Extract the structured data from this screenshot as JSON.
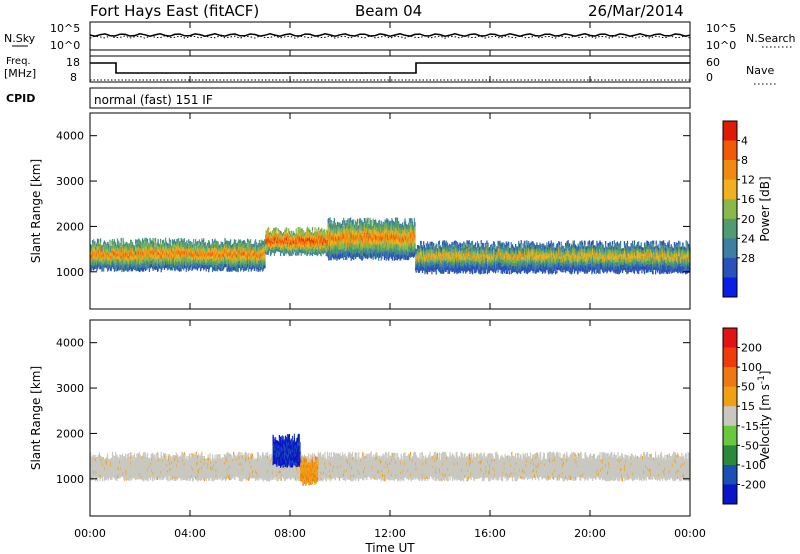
{
  "header": {
    "station": "Fort Hays East (fitACF)",
    "beam": "Beam 04",
    "date": "26/Mar/2014"
  },
  "noise_panel": {
    "left_label": "N.Sky",
    "right_label": "N.Search",
    "left_ticks": [
      "10^5",
      "10^0"
    ],
    "right_ticks": [
      "10^5",
      "10^0"
    ]
  },
  "freq_panel": {
    "left_label_1": "Freq.",
    "left_label_2": "[MHz]",
    "right_label": "Nave",
    "left_ticks": [
      "18",
      "8"
    ],
    "right_ticks": [
      "60",
      "0"
    ]
  },
  "cpid_panel": {
    "label": "CPID",
    "mode": "normal (fast) 151 IF"
  },
  "time_axis": {
    "label": "Time UT",
    "ticks": [
      "00:00",
      "04:00",
      "08:00",
      "12:00",
      "16:00",
      "20:00",
      "00:00"
    ]
  },
  "chart_data": [
    {
      "type": "heatmap",
      "title": "",
      "xlabel": "Time UT",
      "ylabel": "Slant Range [km]",
      "xlim": [
        0,
        24
      ],
      "ylim": [
        180,
        4500
      ],
      "y_ticks": [
        1000,
        2000,
        3000,
        4000
      ],
      "colorbar": {
        "label": "Power [dB]",
        "range": [
          0,
          30
        ],
        "ticks": [
          "4",
          "8",
          "12",
          "16",
          "20",
          "24",
          "28"
        ],
        "colors": [
          "#0a1ee6",
          "#2a52b8",
          "#3d7fa2",
          "#4f9d6f",
          "#8ab84a",
          "#f0b020",
          "#f08a10",
          "#f05a08",
          "#e01a08"
        ]
      },
      "echo_bands": [
        {
          "t_start": 0.0,
          "t_end": 7.0,
          "range_start_km": 1050,
          "range_end_km": 1650,
          "level": "strong"
        },
        {
          "t_start": 7.0,
          "t_end": 9.5,
          "range_start_km": 1400,
          "range_end_km": 1900,
          "level": "very strong"
        },
        {
          "t_start": 9.5,
          "t_end": 13.0,
          "range_start_km": 1300,
          "range_end_km": 2100,
          "level": "strong"
        },
        {
          "t_start": 13.0,
          "t_end": 24.0,
          "range_start_km": 1000,
          "range_end_km": 1600,
          "level": "moderate"
        }
      ]
    },
    {
      "type": "heatmap",
      "title": "",
      "xlabel": "Time UT",
      "ylabel": "Slant Range [km]",
      "xlim": [
        0,
        24
      ],
      "ylim": [
        180,
        4500
      ],
      "y_ticks": [
        1000,
        2000,
        3000,
        4000
      ],
      "colorbar": {
        "label": "Velocity [m s-1]",
        "label_main": "Velocity [m s",
        "label_exp": "-1",
        "label_end": "]",
        "range": [
          -250,
          250
        ],
        "ticks": [
          "200",
          "100",
          "50",
          "15",
          "-15",
          "-50",
          "-100",
          "-200"
        ],
        "colors": [
          "#0a14c8",
          "#1a50b4",
          "#2a8a3c",
          "#6ac83c",
          "#c8c8c0",
          "#f0a014",
          "#f07814",
          "#f03c0a",
          "#e01414"
        ]
      },
      "echo_bands": [
        {
          "t_start": 0.0,
          "t_end": 24.0,
          "range_start_km": 1000,
          "range_end_km": 1500,
          "level": "ground scatter"
        },
        {
          "t_start": 7.3,
          "t_end": 8.4,
          "range_start_km": 1300,
          "range_end_km": 1900,
          "level": "toward radar"
        },
        {
          "t_start": 8.4,
          "t_end": 9.1,
          "range_start_km": 900,
          "range_end_km": 1400,
          "level": "away from radar"
        }
      ]
    }
  ]
}
